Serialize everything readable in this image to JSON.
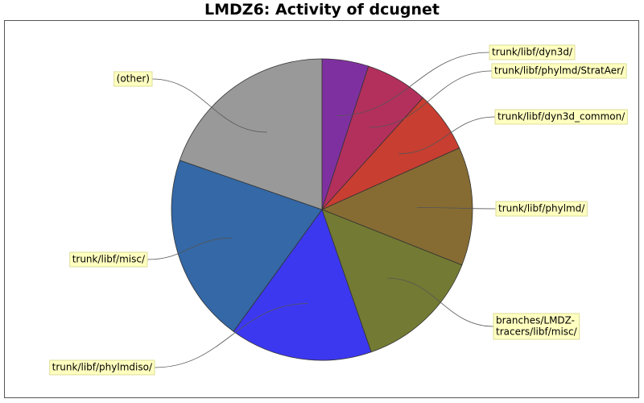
{
  "chart_data": {
    "type": "pie",
    "title": "LMDZ6: Activity of dcugnet",
    "start_angle_deg": 0,
    "direction": "clockwise",
    "slices": [
      {
        "label": "trunk/libf/dyn3d/",
        "value": 5.0,
        "color": "#7f30a0"
      },
      {
        "label": "trunk/libf/phylmd/StratAer/",
        "value": 6.7,
        "color": "#b3305c"
      },
      {
        "label": "trunk/libf/dyn3d_common/",
        "value": 6.6,
        "color": "#c83e31"
      },
      {
        "label": "trunk/libf/phylmd/",
        "value": 12.7,
        "color": "#866c33"
      },
      {
        "label": "branches/LMDZ-tracers/libf/misc/",
        "lines": [
          "branches/LMDZ-",
          "tracers/libf/misc/"
        ],
        "value": 13.7,
        "color": "#737a33"
      },
      {
        "label": "trunk/libf/phylmdiso/",
        "value": 15.3,
        "color": "#3c38f0"
      },
      {
        "label": "trunk/libf/misc/",
        "value": 20.3,
        "color": "#3468a6"
      },
      {
        "label": "(other)",
        "value": 19.7,
        "color": "#999999"
      }
    ],
    "legend": "none"
  }
}
